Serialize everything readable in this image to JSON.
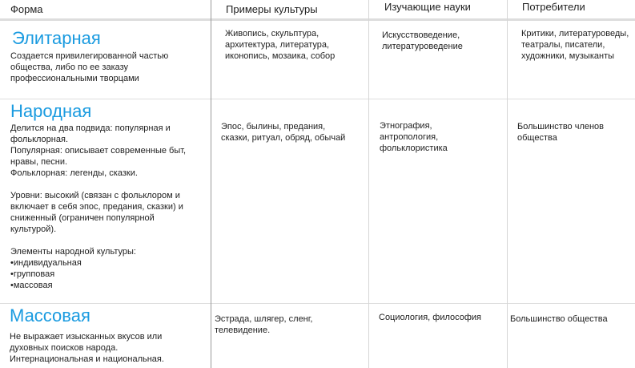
{
  "headers": [
    "Форма",
    "Примеры культуры",
    "Изучающие науки",
    "Потребители"
  ],
  "rows": [
    {
      "form": "Элитарная",
      "description": "Создается привилегированной частью\nобщества, либо по ее заказу\nпрофессиональными творцами",
      "examples": "Живопись, скульптура,\nархитектура, литература,\nиконопись, мозаика, собор",
      "sciences": "Искусствоведение,\nлитературоведение",
      "consumers": "Критики, литературоведы,\nтеатралы, писатели,\nхудожники, музыканты"
    },
    {
      "form": "Народная",
      "description": "Делится на два подвида: популярная и\nфольклорная.\nПопулярная: описывает современные быт,\nнравы, песни.\nФольклорная: легенды, сказки.\n\nУровни: высокий (связан с фольклором и\nвключает в себя эпос, предания, сказки) и\nсниженный (ограничен популярной\nкультурой).\n\nЭлементы народной культуры:\n•индивидуальная\n•групповая\n•массовая",
      "examples": "Эпос, былины, предания,\nсказки, ритуал, обряд, обычай",
      "sciences": "Этнография,\nантропология,\nфольклористика",
      "consumers": "Большинство членов\nобщества"
    },
    {
      "form": "Массовая",
      "description": "Не выражает изысканных вкусов или\nдуховных поисков народа.\nИнтернациональная и национальная.",
      "examples": "Эстрада, шлягер, сленг,\nтелевидение.",
      "sciences": "Социология, философия",
      "consumers": "Большинство общества"
    }
  ],
  "colors": {
    "title": "#1a9be0",
    "divider": "#dddddd"
  }
}
